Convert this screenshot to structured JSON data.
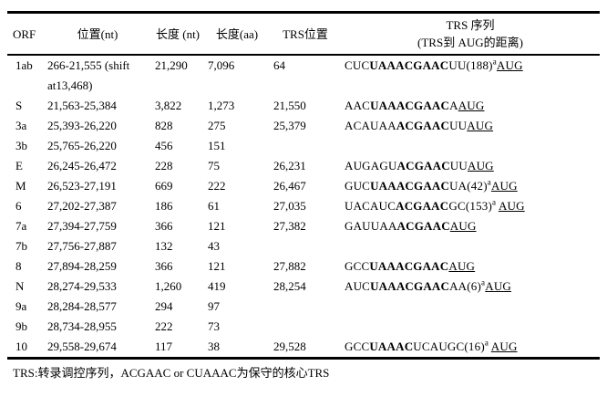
{
  "page": {
    "background": "#ffffff",
    "text_color": "#000000"
  },
  "table": {
    "headers": {
      "orf": "ORF",
      "position": "位置(nt)",
      "length_nt": "长度 (nt)",
      "length_aa": "长度(aa)",
      "trs_position": "TRS位置",
      "trs_seq_line1": "TRS 序列",
      "trs_seq_line2": "(TRS到 AUG的距离)"
    },
    "rows": [
      {
        "orf": "1ab",
        "position": "266-21,555 (shift at13,468)",
        "length_nt": "21,290",
        "length_aa": "7,096",
        "trs_position": "64",
        "seq": {
          "pre": "CUC",
          "core": "UAAACGAAC",
          "mid": "UU(188)",
          "sup": "a",
          "gap": false,
          "aug": "AUG"
        }
      },
      {
        "orf": "S",
        "position": "21,563-25,384",
        "length_nt": "3,822",
        "length_aa": "1,273",
        "trs_position": "21,550",
        "seq": {
          "pre": "AAC",
          "core": "UAAACGAAC",
          "mid": "A",
          "sup": "",
          "gap": false,
          "aug": "AUG"
        }
      },
      {
        "orf": "3a",
        "position": "25,393-26,220",
        "length_nt": "828",
        "length_aa": "275",
        "trs_position": "25,379",
        "seq": {
          "pre": "ACAUAA",
          "core": "ACGAAC",
          "mid": "UU",
          "sup": "",
          "gap": false,
          "aug": "AUG"
        }
      },
      {
        "orf": "3b",
        "position": "25,765-26,220",
        "length_nt": "456",
        "length_aa": "151",
        "trs_position": "",
        "seq": null
      },
      {
        "orf": "E",
        "position": "26,245-26,472",
        "length_nt": "228",
        "length_aa": "75",
        "trs_position": "26,231",
        "seq": {
          "pre": "AUGAGU",
          "core": "ACGAAC",
          "mid": "UU",
          "sup": "",
          "gap": false,
          "aug": "AUG"
        }
      },
      {
        "orf": "M",
        "position": "26,523-27,191",
        "length_nt": "669",
        "length_aa": "222",
        "trs_position": "26,467",
        "seq": {
          "pre": "GUC",
          "core": "UAAACGAAC",
          "mid": "UA(42)",
          "sup": "a",
          "gap": false,
          "aug": "AUG"
        }
      },
      {
        "orf": "6",
        "position": "27,202-27,387",
        "length_nt": "186",
        "length_aa": "61",
        "trs_position": "27,035",
        "seq": {
          "pre": "UACAUC",
          "core": "ACGAAC",
          "mid": "GC(153)",
          "sup": "a",
          "gap": true,
          "aug": "AUG"
        }
      },
      {
        "orf": "7a",
        "position": "27,394-27,759",
        "length_nt": "366",
        "length_aa": "121",
        "trs_position": "27,382",
        "seq": {
          "pre": "GAUUAA",
          "core": "ACGAAC",
          "mid": "",
          "sup": "",
          "gap": false,
          "aug": "AUG"
        }
      },
      {
        "orf": "7b",
        "position": "27,756-27,887",
        "length_nt": "132",
        "length_aa": "43",
        "trs_position": "",
        "seq": null
      },
      {
        "orf": "8",
        "position": "27,894-28,259",
        "length_nt": "366",
        "length_aa": "121",
        "trs_position": "27,882",
        "seq": {
          "pre": "GCC",
          "core": "UAAACGAAC",
          "mid": "",
          "sup": "",
          "gap": false,
          "aug": "AUG"
        }
      },
      {
        "orf": "N",
        "position": "28,274-29,533",
        "length_nt": "1,260",
        "length_aa": "419",
        "trs_position": "28,254",
        "seq": {
          "pre": "AUC",
          "core": "UAAACGAAC",
          "mid": "AA(6)",
          "sup": "a",
          "gap": false,
          "aug": "AUG"
        }
      },
      {
        "orf": "9a",
        "position": "28,284-28,577",
        "length_nt": "294",
        "length_aa": "97",
        "trs_position": "",
        "seq": null
      },
      {
        "orf": "9b",
        "position": "28,734-28,955",
        "length_nt": "222",
        "length_aa": "73",
        "trs_position": "",
        "seq": null
      },
      {
        "orf": "10",
        "position": "29,558-29,674",
        "length_nt": "117",
        "length_aa": "38",
        "trs_position": "29,528",
        "seq": {
          "pre": "GCC",
          "core": "UAAAC",
          "mid": "UCAUGC(16)",
          "sup": "a",
          "gap": true,
          "aug": "AUG"
        }
      }
    ],
    "footnote": "TRS:转录调控序列，ACGAAC or CUAAAC为保守的核心TRS"
  }
}
